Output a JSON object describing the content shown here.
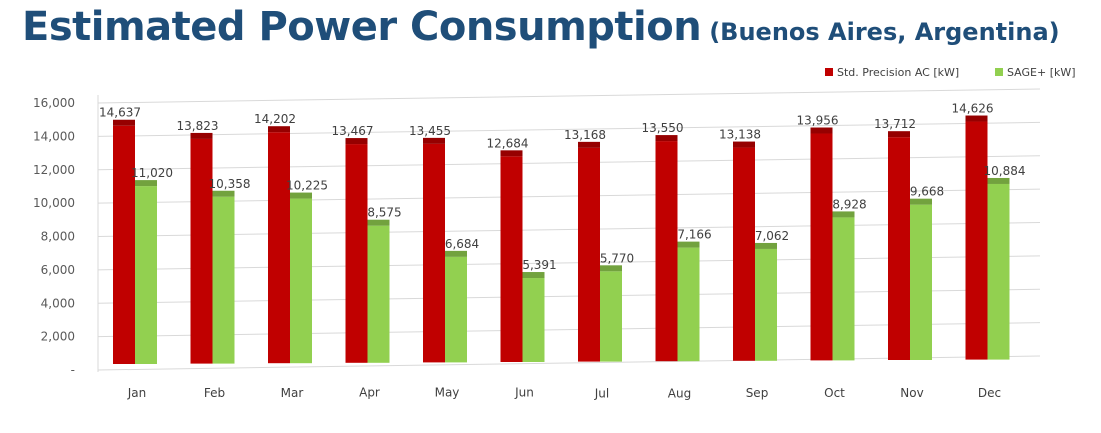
{
  "header": {
    "title": "Estimated Power Consumption",
    "subtitle": "(Buenos Aires, Argentina)"
  },
  "chart_data": {
    "type": "bar",
    "title": "Estimated Power Consumption",
    "subtitle": "(Buenos Aires, Argentina)",
    "categories": [
      "Jan",
      "Feb",
      "Mar",
      "Apr",
      "May",
      "Jun",
      "Jul",
      "Aug",
      "Sep",
      "Oct",
      "Nov",
      "Dec"
    ],
    "series": [
      {
        "name": "Std. Precision AC [kW]",
        "color": "#c00000",
        "values": [
          14637,
          13823,
          14202,
          13467,
          13455,
          12684,
          13168,
          13550,
          13138,
          13956,
          13712,
          14626
        ],
        "labels": [
          "14,637",
          "13,823",
          "14,202",
          "13,467",
          "13,455",
          "12,684",
          "13,168",
          "13,550",
          "13,138",
          "13,956",
          "13,712",
          "14,626"
        ]
      },
      {
        "name": "SAGE+ [kW]",
        "color": "#92d050",
        "values": [
          11020,
          10358,
          10225,
          8575,
          6684,
          5391,
          5770,
          7166,
          7062,
          8928,
          9668,
          10884
        ],
        "labels": [
          "11,020",
          "10,358",
          "10,225",
          "8,575",
          "6,684",
          "5,391",
          "5,770",
          "7,166",
          "7,062",
          "8,928",
          "9,668",
          "10,884"
        ]
      }
    ],
    "ylim": [
      0,
      16000
    ],
    "yticks": [
      "-",
      "2,000",
      "4,000",
      "6,000",
      "8,000",
      "10,000",
      "12,000",
      "14,000",
      "16,000"
    ],
    "grid": true,
    "legend": "top-right",
    "xlabel": "",
    "ylabel": ""
  }
}
